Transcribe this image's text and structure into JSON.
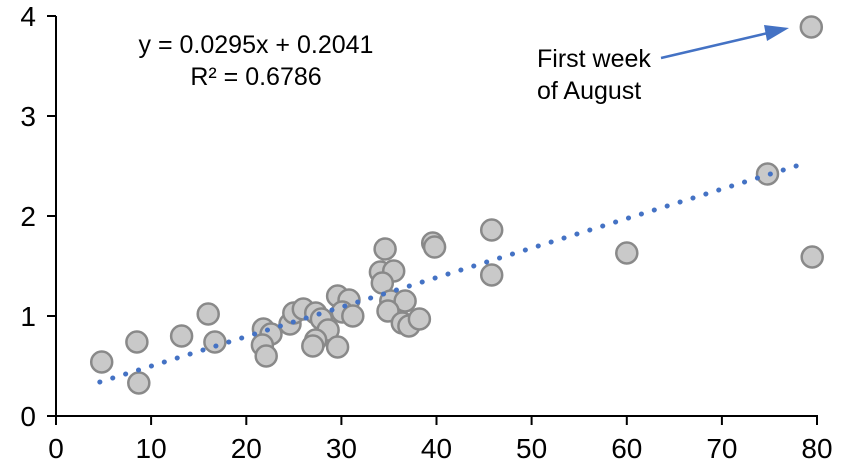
{
  "chart_data": {
    "type": "scatter",
    "title": "",
    "equation_line1": "y = 0.0295x + 0.2041",
    "equation_line2": "R² = 0.6786",
    "annotation": {
      "line1": "First week",
      "line2": "of August",
      "target_point": [
        79.4,
        3.89
      ]
    },
    "xlabel": "",
    "ylabel": "",
    "xlim": [
      0,
      80
    ],
    "ylim": [
      0,
      4
    ],
    "x_ticks": [
      0,
      10,
      20,
      30,
      40,
      50,
      60,
      70,
      80
    ],
    "y_ticks": [
      0,
      1,
      2,
      3,
      4
    ],
    "grid": false,
    "legend": false,
    "points": [
      [
        4.8,
        0.54
      ],
      [
        8.5,
        0.74
      ],
      [
        8.7,
        0.33
      ],
      [
        13.2,
        0.8
      ],
      [
        16.0,
        1.02
      ],
      [
        16.7,
        0.74
      ],
      [
        21.8,
        0.87
      ],
      [
        22.6,
        0.82
      ],
      [
        21.7,
        0.71
      ],
      [
        22.1,
        0.6
      ],
      [
        24.6,
        0.92
      ],
      [
        25.0,
        1.03
      ],
      [
        26.0,
        1.07
      ],
      [
        27.3,
        1.03
      ],
      [
        27.9,
        0.97
      ],
      [
        28.6,
        0.86
      ],
      [
        27.3,
        0.76
      ],
      [
        27.0,
        0.7
      ],
      [
        29.6,
        0.69
      ],
      [
        29.6,
        1.2
      ],
      [
        30.8,
        1.16
      ],
      [
        30.1,
        1.04
      ],
      [
        31.2,
        1.0
      ],
      [
        34.6,
        1.67
      ],
      [
        34.1,
        1.44
      ],
      [
        35.5,
        1.45
      ],
      [
        34.3,
        1.33
      ],
      [
        35.2,
        1.15
      ],
      [
        36.7,
        1.15
      ],
      [
        34.9,
        1.05
      ],
      [
        36.4,
        0.93
      ],
      [
        37.1,
        0.9
      ],
      [
        38.2,
        0.97
      ],
      [
        39.6,
        1.73
      ],
      [
        39.8,
        1.69
      ],
      [
        45.8,
        1.86
      ],
      [
        45.8,
        1.41
      ],
      [
        60.0,
        1.63
      ],
      [
        74.8,
        2.42
      ],
      [
        79.4,
        3.89
      ],
      [
        79.5,
        1.59
      ]
    ],
    "trendline": {
      "style": "dotted",
      "slope": 0.0295,
      "intercept": 0.2041,
      "x_start": 4.6,
      "x_end": 78.9
    },
    "colors": {
      "point_fill": "#c9c9c9",
      "point_stroke": "#898989",
      "trend": "#4472c4",
      "arrow": "#4472c4",
      "axis": "#000000",
      "text": "#000000"
    }
  }
}
